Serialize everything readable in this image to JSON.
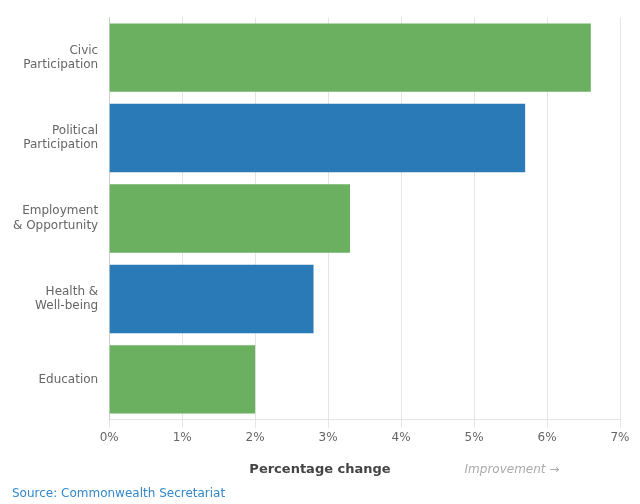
{
  "chart_data": {
    "type": "bar",
    "orientation": "horizontal",
    "categories": [
      "Education",
      "Health &\nWell-being",
      "Employment\n& Opportunity",
      "Political\nParticipation",
      "Civic\nParticipation"
    ],
    "values": [
      2.0,
      2.8,
      3.3,
      5.7,
      6.6
    ],
    "colors": [
      "#6ab060",
      "#2b7ab8",
      "#6ab060",
      "#2b7ab8",
      "#6ab060"
    ],
    "xlabel": "Percentage change",
    "xlim": [
      0,
      7
    ],
    "xticks": [
      {
        "value": 0,
        "label": "0%"
      },
      {
        "value": 1,
        "label": "1%"
      },
      {
        "value": 2,
        "label": "2%"
      },
      {
        "value": 3,
        "label": "3%"
      },
      {
        "value": 4,
        "label": "4%"
      },
      {
        "value": 5,
        "label": "5%"
      },
      {
        "value": 6,
        "label": "6%"
      },
      {
        "value": 7,
        "label": "7%"
      }
    ],
    "grid": true,
    "annotations": [
      {
        "text": "Improvement →",
        "color": "#aaaaaa"
      },
      {
        "text": "Source: Commonwealth Secretariat",
        "color": "#3388cc"
      }
    ]
  }
}
